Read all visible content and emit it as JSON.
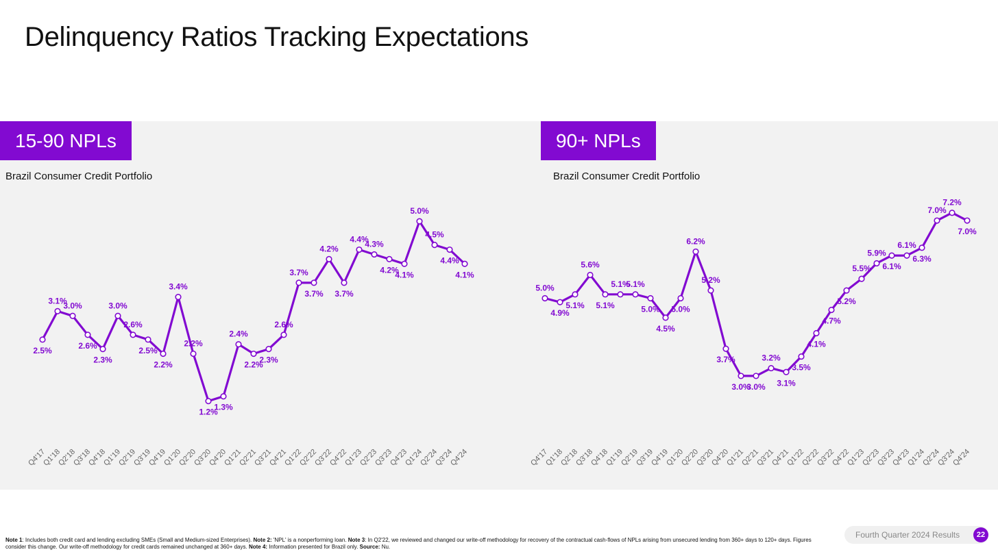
{
  "page": {
    "title": "Delinquency Ratios Tracking Expectations",
    "accent_color": "#820ad1",
    "footer_label": "Fourth Quarter 2024 Results",
    "page_number": "22",
    "footnote": [
      {
        "bold": "Note 1",
        "text": ": Includes both credit card and lending excluding SMEs (Small and Medium-sized Enterprises). "
      },
      {
        "bold": "Note 2:",
        "text": " 'NPL' is a nonperforming loan. "
      },
      {
        "bold": "Note 3",
        "text": ": In Q2'22, we reviewed and changed our write-off methodology for recovery of the contractual cash-flows of NPLs arising from unsecured lending from 360+ days to 120+ days. Figures consider this change. Our write-off methodology for credit cards remained unchanged at 360+ days. "
      },
      {
        "bold": "Note 4:",
        "text": " Information presented for Brazil only. "
      },
      {
        "bold": "Source:",
        "text": " Nu."
      }
    ]
  },
  "chart_data": [
    {
      "type": "line",
      "title": "15-90 NPLs",
      "subtitle": "Brazil Consumer Credit Portfolio",
      "categories": [
        "Q4'17",
        "Q1'18",
        "Q2'18",
        "Q3'18",
        "Q4'18",
        "Q1'19",
        "Q2'19",
        "Q3'19",
        "Q4'19",
        "Q1'20",
        "Q2'20",
        "Q3'20",
        "Q4'20",
        "Q1'21",
        "Q2'21",
        "Q3'21",
        "Q4'21",
        "Q1'22",
        "Q2'22",
        "Q3'22",
        "Q4'22",
        "Q1'23",
        "Q2'23",
        "Q3'23",
        "Q4'23",
        "Q1'24",
        "Q2'24",
        "Q3'24",
        "Q4'24"
      ],
      "values": [
        2.5,
        3.1,
        3.0,
        2.6,
        2.3,
        3.0,
        2.6,
        2.5,
        2.2,
        3.4,
        2.2,
        1.2,
        1.3,
        2.4,
        2.2,
        2.3,
        2.6,
        3.7,
        3.7,
        4.2,
        3.7,
        4.4,
        4.3,
        4.2,
        4.1,
        5.0,
        4.5,
        4.4,
        4.1
      ],
      "labels": [
        "2.5%",
        "3.1%",
        "3.0%",
        "2.6%",
        "2.3%",
        "3.0%",
        "2.6%",
        "2.5%",
        "2.2%",
        "3.4%",
        "2.2%",
        "1.2%",
        "1.3%",
        "2.4%",
        "2.2%",
        "2.3%",
        "2.6%",
        "3.7%",
        "3.7%",
        "4.2%",
        "3.7%",
        "4.4%",
        "4.3%",
        "4.2%",
        "4.1%",
        "5.0%",
        "4.5%",
        "4.4%",
        "4.1%"
      ],
      "label_positions": [
        "below",
        "above",
        "above",
        "below",
        "below",
        "above",
        "above",
        "below",
        "below",
        "above",
        "above",
        "below",
        "below",
        "above",
        "below",
        "below",
        "above",
        "above",
        "below",
        "above",
        "below",
        "above",
        "above",
        "below",
        "below",
        "above",
        "above",
        "below",
        "below"
      ],
      "ylim": [
        0.5,
        6.0
      ],
      "series_color": "#820ad1"
    },
    {
      "type": "line",
      "title": "90+ NPLs",
      "subtitle": "Brazil Consumer Credit Portfolio",
      "categories": [
        "Q4'17",
        "Q1'18",
        "Q2'18",
        "Q3'18",
        "Q4'18",
        "Q1'19",
        "Q2'19",
        "Q3'19",
        "Q4'19",
        "Q1'20",
        "Q2'20",
        "Q3'20",
        "Q4'20",
        "Q1'21",
        "Q2'21",
        "Q3'21",
        "Q4'21",
        "Q1'22",
        "Q2'22",
        "Q3'22",
        "Q4'22",
        "Q1'23",
        "Q2'23",
        "Q3'23",
        "Q4'23",
        "Q1'24",
        "Q2'24",
        "Q3'24",
        "Q4'24"
      ],
      "values": [
        5.0,
        4.9,
        5.1,
        5.6,
        5.1,
        5.1,
        5.1,
        5.0,
        4.5,
        5.0,
        6.2,
        5.2,
        3.7,
        3.0,
        3.0,
        3.2,
        3.1,
        3.5,
        4.1,
        4.7,
        5.2,
        5.5,
        5.9,
        6.1,
        6.1,
        6.3,
        7.0,
        7.2,
        7.0
      ],
      "labels": [
        "5.0%",
        "4.9%",
        "5.1%",
        "5.6%",
        "5.1%",
        "5.1%",
        "5.1%",
        "5.0%",
        "4.5%",
        "5.0%",
        "6.2%",
        "5.2%",
        "3.7%",
        "3.0%",
        "3.0%",
        "3.2%",
        "3.1%",
        "3.5%",
        "4.1%",
        "4.7%",
        "5.2%",
        "5.5%",
        "5.9%",
        "6.1%",
        "6.1%",
        "6.3%",
        "7.0%",
        "7.2%",
        "7.0%"
      ],
      "label_positions": [
        "above",
        "below",
        "below",
        "above",
        "below",
        "above",
        "above",
        "below",
        "below",
        "below",
        "above",
        "above",
        "below",
        "below",
        "below",
        "above",
        "below",
        "below",
        "below",
        "below",
        "below",
        "above",
        "above",
        "below",
        "above",
        "below",
        "above",
        "above",
        "below"
      ],
      "ylim": [
        1.5,
        8.2
      ],
      "series_color": "#820ad1"
    }
  ]
}
